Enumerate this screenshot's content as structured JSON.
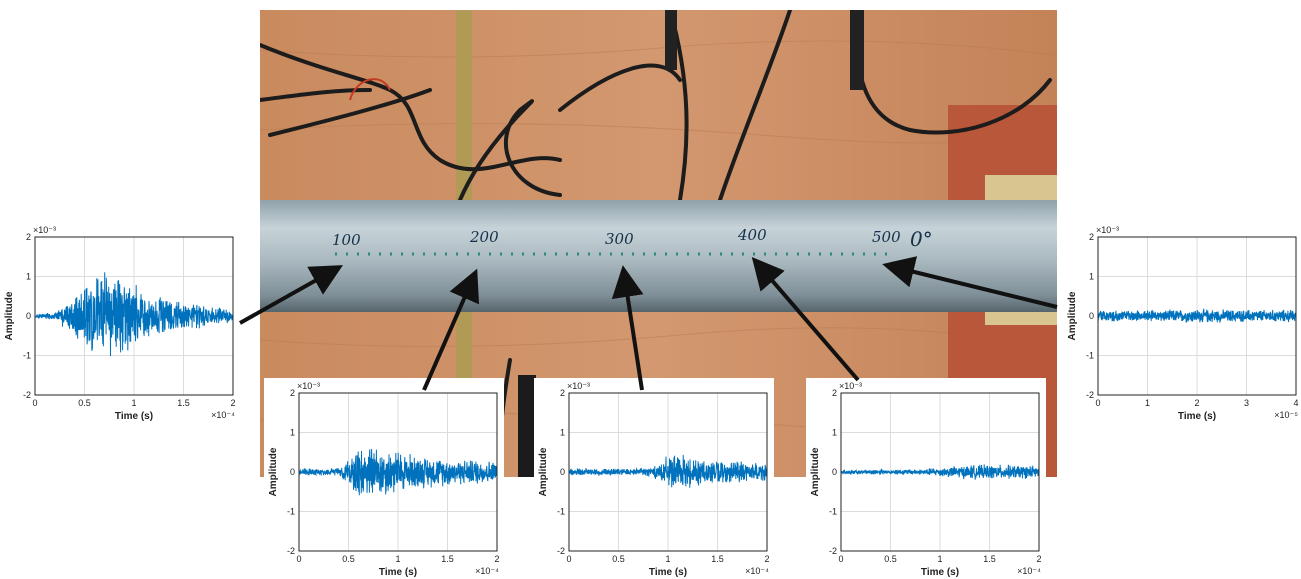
{
  "photo": {
    "pipe_markings": [
      "100",
      "200",
      "300",
      "400",
      "500",
      "0°"
    ],
    "colors": {
      "wood": "#c8875a",
      "pipe": "#aebcc3",
      "cable": "#1c1c1c",
      "cable_red": "#c23b22",
      "brick": "#b8573a",
      "label_ink": "#15304a",
      "arrow": "#111111"
    }
  },
  "chart_data": [
    {
      "id": "sensor-100",
      "type": "line",
      "xlabel": "Time (s)",
      "ylabel": "Amplitude",
      "xlim": [
        0,
        2
      ],
      "ylim": [
        -2,
        2
      ],
      "x_exponent": "×10⁻⁴",
      "y_exponent": "×10⁻³",
      "xticks": [
        "0",
        "0.5",
        "1",
        "1.5",
        "2"
      ],
      "yticks": [
        "-2",
        "-1",
        "0",
        "1",
        "2"
      ],
      "grid": true,
      "color": "#0072BD",
      "envelope": {
        "x": [
          0,
          0.2,
          0.4,
          0.6,
          0.8,
          1.0,
          1.2,
          1.4,
          1.6,
          1.8,
          2.0
        ],
        "amp": [
          0.05,
          0.1,
          0.6,
          1.2,
          1.1,
          0.9,
          0.6,
          0.45,
          0.35,
          0.25,
          0.2
        ]
      }
    },
    {
      "id": "sensor-200",
      "type": "line",
      "xlabel": "Time (s)",
      "ylabel": "Amplitude",
      "xlim": [
        0,
        2
      ],
      "ylim": [
        -2,
        2
      ],
      "x_exponent": "×10⁻⁴",
      "y_exponent": "×10⁻³",
      "xticks": [
        "0",
        "0.5",
        "1",
        "1.5",
        "2"
      ],
      "yticks": [
        "-2",
        "-1",
        "0",
        "1",
        "2"
      ],
      "grid": true,
      "color": "#0072BD",
      "envelope": {
        "x": [
          0,
          0.2,
          0.4,
          0.5,
          0.6,
          0.8,
          1.0,
          1.2,
          1.4,
          1.6,
          1.8,
          2.0
        ],
        "amp": [
          0.1,
          0.1,
          0.12,
          0.3,
          0.75,
          0.7,
          0.6,
          0.45,
          0.4,
          0.35,
          0.35,
          0.3
        ]
      }
    },
    {
      "id": "sensor-300",
      "type": "line",
      "xlabel": "Time (s)",
      "ylabel": "Amplitude",
      "xlim": [
        0,
        2
      ],
      "ylim": [
        -2,
        2
      ],
      "x_exponent": "×10⁻⁴",
      "y_exponent": "×10⁻³",
      "xticks": [
        "0",
        "0.5",
        "1",
        "1.5",
        "2"
      ],
      "yticks": [
        "-2",
        "-1",
        "0",
        "1",
        "2"
      ],
      "grid": true,
      "color": "#0072BD",
      "envelope": {
        "x": [
          0,
          0.2,
          0.4,
          0.6,
          0.85,
          1.0,
          1.2,
          1.4,
          1.6,
          1.8,
          2.0
        ],
        "amp": [
          0.1,
          0.1,
          0.1,
          0.1,
          0.15,
          0.45,
          0.45,
          0.35,
          0.3,
          0.3,
          0.25
        ]
      }
    },
    {
      "id": "sensor-400",
      "type": "line",
      "xlabel": "Time (s)",
      "ylabel": "Amplitude",
      "xlim": [
        0,
        2
      ],
      "ylim": [
        -2,
        2
      ],
      "x_exponent": "×10⁻⁴",
      "y_exponent": "×10⁻³",
      "xticks": [
        "0",
        "0.5",
        "1",
        "1.5",
        "2"
      ],
      "yticks": [
        "-2",
        "-1",
        "0",
        "1",
        "2"
      ],
      "grid": true,
      "color": "#0072BD",
      "envelope": {
        "x": [
          0,
          0.4,
          0.8,
          1.1,
          1.3,
          1.6,
          2.0
        ],
        "amp": [
          0.06,
          0.07,
          0.08,
          0.15,
          0.2,
          0.2,
          0.18
        ]
      }
    },
    {
      "id": "sensor-500",
      "type": "line",
      "xlabel": "Time (s)",
      "ylabel": "Amplitude",
      "xlim": [
        0,
        4
      ],
      "ylim": [
        -2,
        2
      ],
      "x_exponent": "×10⁻⁵",
      "y_exponent": "×10⁻³",
      "xticks": [
        "0",
        "1",
        "2",
        "3",
        "4"
      ],
      "yticks": [
        "-2",
        "-1",
        "0",
        "1",
        "2"
      ],
      "grid": true,
      "color": "#0072BD",
      "envelope": {
        "x": [
          0,
          1,
          2,
          3,
          4
        ],
        "amp": [
          0.15,
          0.15,
          0.2,
          0.17,
          0.18
        ]
      }
    }
  ]
}
